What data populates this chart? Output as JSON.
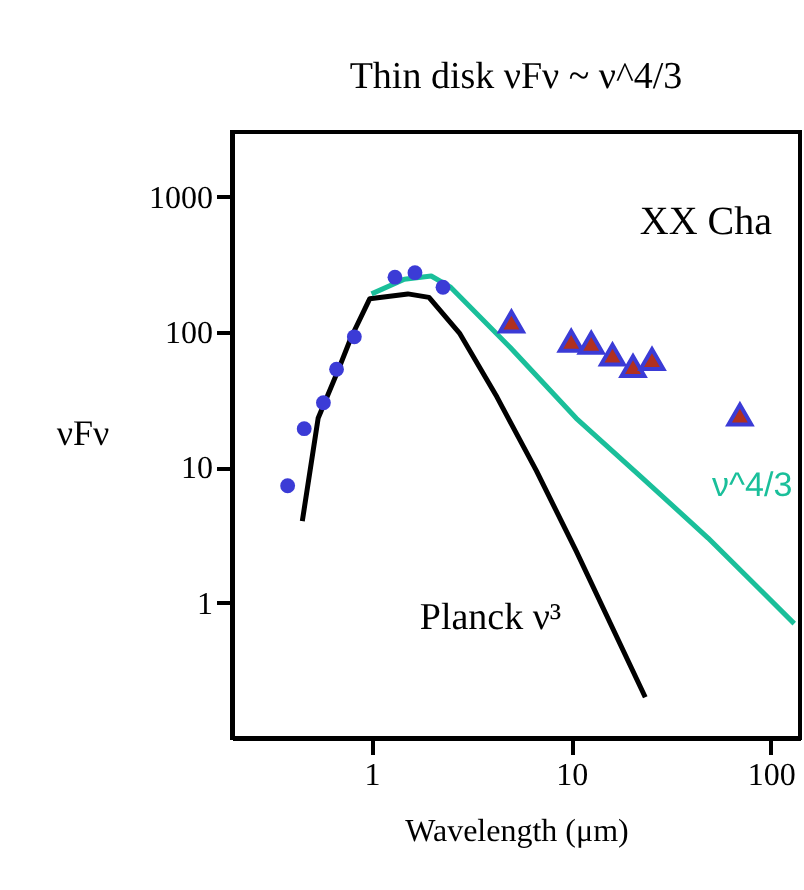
{
  "chart_data": {
    "type": "scatter",
    "title": "Thin disk  νFν ~ ν^4/3",
    "xlabel": "Wavelength (μm)",
    "ylabel": "νFν",
    "log": "xy",
    "grid": false,
    "xlim": [
      0.2,
      140
    ],
    "ylim": [
      0.1,
      3000
    ],
    "xticks": [
      1,
      10,
      100
    ],
    "yticks": [
      1,
      10,
      100,
      1000
    ],
    "series": [
      {
        "type": "line",
        "name": "Planck ν³",
        "color": "#000000",
        "marker": "none",
        "x": [
          0.45,
          0.54,
          0.68,
          0.79,
          0.98,
          1.52,
          1.94,
          2.77,
          4.25,
          6.7,
          10.6,
          23.5
        ],
        "values": [
          4.0,
          23,
          52,
          91,
          176,
          191,
          180,
          97,
          33,
          9.4,
          2.4,
          0.2
        ]
      },
      {
        "type": "line",
        "name": "ν^4/3",
        "color": "#1abf9a",
        "marker": "none",
        "x": [
          1.0,
          1.46,
          1.99,
          2.49,
          4.94,
          10.6,
          22.6,
          48.5,
          131
        ],
        "values": [
          191,
          245,
          259,
          214,
          77,
          23,
          8.4,
          3.0,
          0.7
        ]
      },
      {
        "color": "#3b3bd6",
        "marker": "circle",
        "x": [
          0.38,
          0.46,
          0.574,
          0.668,
          0.82,
          1.31,
          1.65,
          2.28
        ],
        "values": [
          7.3,
          19.3,
          30,
          53,
          92,
          254,
          274,
          214
        ]
      },
      {
        "color": "#b03020",
        "marker": "triangle",
        "x": [
          5.02,
          10,
          12.6,
          16.1,
          20.4,
          25.4,
          70
        ],
        "values": [
          119,
          86,
          83,
          68,
          56,
          63,
          24.5
        ]
      }
    ],
    "annotations": [
      "XX Cha"
    ]
  }
}
